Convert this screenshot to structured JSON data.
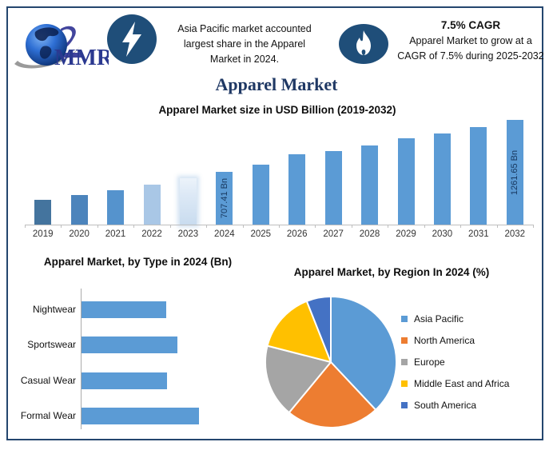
{
  "header": {
    "logo": {
      "text": "MMR"
    },
    "left_highlight": {
      "icon": "lightning",
      "lines": [
        "Asia Pacific market accounted",
        "largest share in the Apparel",
        "Market in 2024."
      ]
    },
    "right_highlight": {
      "icon": "flame",
      "title": "7.5% CAGR",
      "lines": [
        "Apparel Market to grow at a",
        "CAGR of 7.5% during 2025-2032"
      ]
    }
  },
  "page_title": "Apparel Market",
  "colors": {
    "frame_border": "#24466E",
    "navy_icon": "#1F4E79",
    "title_navy": "#1F3864",
    "logo_blue": "#2B3990",
    "bar_default": "#5B9BD5",
    "axis_gray": "#BFBFBF"
  },
  "chart_data": [
    {
      "type": "bar",
      "title": "Apparel Market size in USD Billion (2019-2032)",
      "categories": [
        "2019",
        "2020",
        "2021",
        "2022",
        "2023",
        "2024",
        "2025",
        "2026",
        "2027",
        "2028",
        "2029",
        "2030",
        "2031",
        "2032"
      ],
      "values": [
        410,
        457,
        508,
        571,
        640,
        707.41,
        789,
        892,
        926,
        991,
        1062,
        1119,
        1185,
        1261.65
      ],
      "unit": "USD Billion",
      "data_labels": {
        "2024": "707.41 Bn",
        "2032": "1261.65 Bn"
      },
      "bar_colors": [
        "#44749E",
        "#4C84BC",
        "#5593CD",
        "#A9C7E6",
        "#CFE0F1",
        "#5B9BD5",
        "#5B9BD5",
        "#5B9BD5",
        "#5B9BD5",
        "#5B9BD5",
        "#5B9BD5",
        "#5B9BD5",
        "#5B9BD5",
        "#5B9BD5"
      ],
      "faded_category": "2023",
      "grid": false,
      "note": "values for unlabeled years estimated from bar heights"
    },
    {
      "type": "bar",
      "orientation": "horizontal",
      "title": "Apparel Market, by Type in 2024 (Bn)",
      "categories": [
        "Nightwear",
        "Sportswear",
        "Casual Wear",
        "Formal Wear"
      ],
      "values": [
        150,
        170,
        152,
        208
      ],
      "unit": "Bn",
      "bar_color": "#5B9BD5",
      "grid": false,
      "note": "values estimated from bar lengths"
    },
    {
      "type": "pie",
      "title": "Apparel Market, by Region In 2024 (%)",
      "labels": [
        "Asia Pacific",
        "North America",
        "Europe",
        "Middle East and Africa",
        "South America"
      ],
      "values": [
        38,
        23,
        18,
        15,
        6
      ],
      "colors": [
        "#5B9BD5",
        "#ED7D31",
        "#A5A5A5",
        "#FFC000",
        "#4472C4"
      ],
      "legend_position": "right",
      "note": "percentages estimated from slice angles"
    }
  ]
}
